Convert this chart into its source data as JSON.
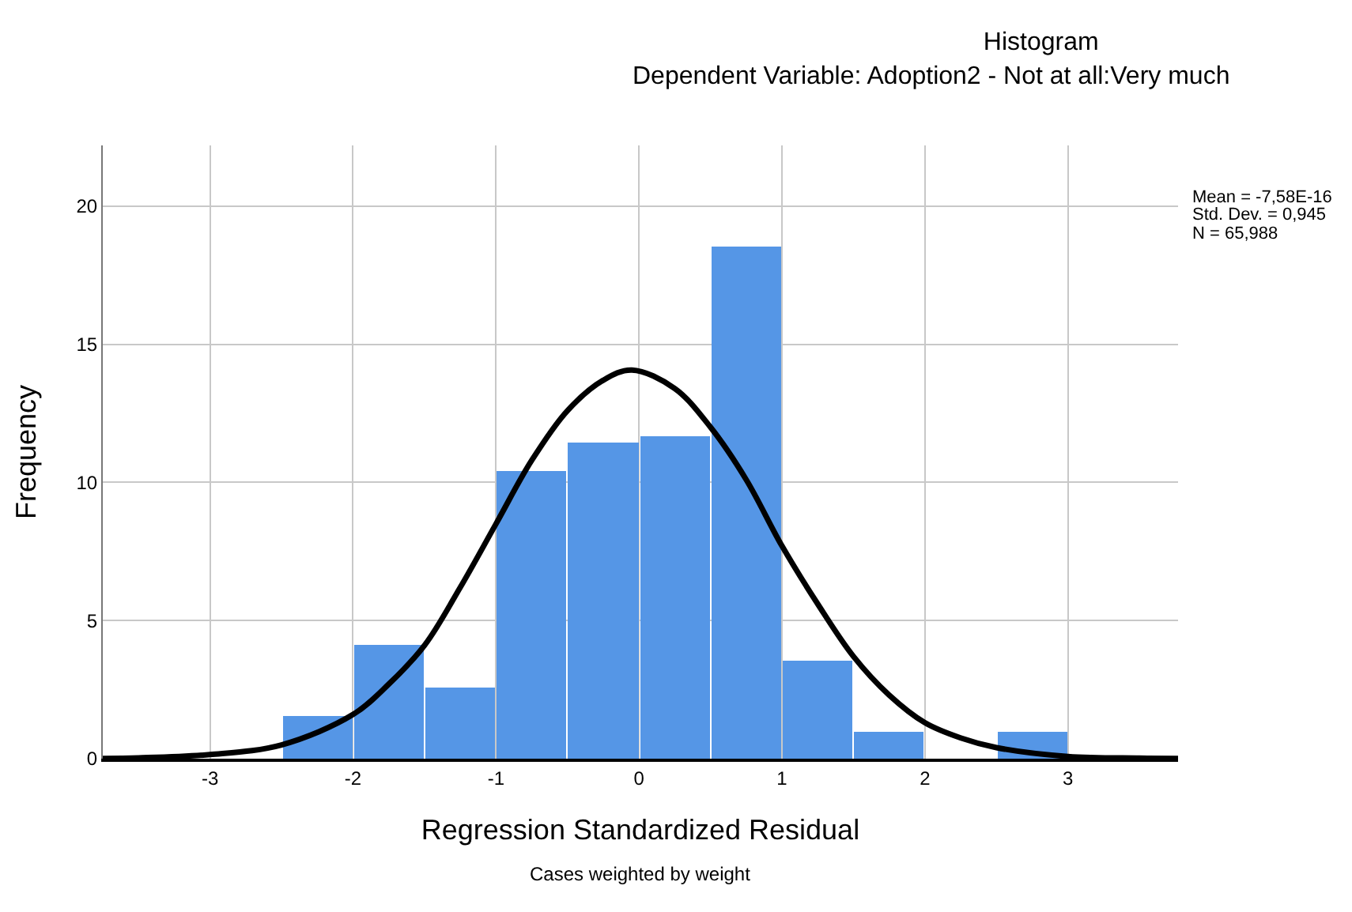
{
  "chart_data": {
    "type": "histogram",
    "title": "Histogram",
    "subtitle": "Dependent Variable: Adoption2 - Not at all:Very much",
    "xlabel": "Regression Standardized Residual",
    "ylabel": "Frequency",
    "bins": [
      -2.5,
      -2,
      -1.5,
      -1,
      -0.5,
      0,
      0.5,
      1,
      1.5,
      2,
      2.5,
      3
    ],
    "values": [
      1.53,
      4.11,
      2.55,
      10.42,
      11.42,
      11.7,
      18.55,
      3.55,
      1.0,
      0,
      1.0
    ],
    "color": "#5596e6",
    "series": [
      {
        "type": "line",
        "color": "#000000",
        "x": [
          -3.75,
          -3.5,
          -3,
          -2.5,
          -2,
          -1.75,
          -1.5,
          -1.25,
          -1,
          -0.75,
          -0.5,
          -0.25,
          -0.05,
          0.25,
          0.5,
          0.75,
          1,
          1.25,
          1.5,
          1.75,
          2,
          2.25,
          2.5,
          3,
          3.5,
          3.77
        ],
        "values": [
          0.01,
          0.03,
          0.15,
          0.5,
          1.6,
          2.7,
          4.1,
          6.2,
          8.5,
          10.8,
          12.6,
          13.7,
          14.07,
          13.4,
          12.0,
          10.1,
          7.7,
          5.6,
          3.7,
          2.3,
          1.3,
          0.75,
          0.4,
          0.08,
          0.02,
          0.01
        ]
      }
    ],
    "xlim": [
      -3.75,
      3.77
    ],
    "ylim": [
      0,
      22.2
    ],
    "xticks": [
      -3,
      -2,
      -1,
      0,
      1,
      2,
      3
    ],
    "yticks": [
      0,
      5,
      10,
      15,
      20
    ],
    "grid": true,
    "annotations": [
      "Mean = -7,58E-16",
      "Std. Dev. = 0,945",
      "N = 65,988",
      "Cases weighted by weight"
    ]
  }
}
